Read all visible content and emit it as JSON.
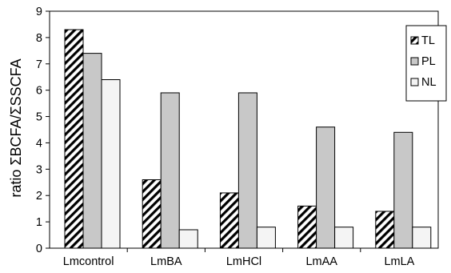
{
  "chart_data": {
    "type": "bar",
    "categories": [
      "Lmcontrol",
      "LmBA",
      "LmHCl",
      "LmAA",
      "LmLA"
    ],
    "series": [
      {
        "name": "TL",
        "values": [
          8.3,
          2.6,
          2.1,
          1.6,
          1.4
        ],
        "fill": "hatch"
      },
      {
        "name": "PL",
        "values": [
          7.4,
          5.9,
          5.9,
          4.6,
          4.4
        ],
        "fill": "#c8c8c8"
      },
      {
        "name": "NL",
        "values": [
          6.4,
          0.7,
          0.8,
          0.8,
          0.8
        ],
        "fill": "#f4f4f4"
      }
    ],
    "title": "",
    "xlabel": "",
    "ylabel": "ratio ΣBCFA/ΣSSCFA",
    "ylim": [
      0,
      9
    ],
    "yticks": [
      0,
      1,
      2,
      3,
      4,
      5,
      6,
      7,
      8,
      9
    ],
    "grid": false,
    "legend_position": "top-right"
  }
}
